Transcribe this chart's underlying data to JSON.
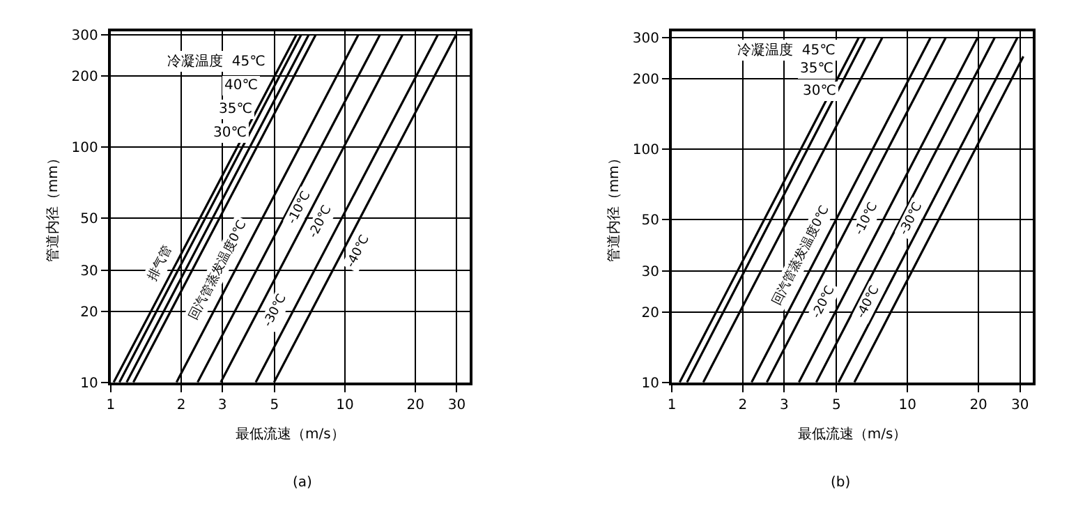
{
  "chart_data": [
    {
      "type": "line",
      "xlabel": "最低流速（m/s）",
      "ylabel": "管道内径（mm）",
      "log": "xy",
      "grid": true,
      "line_style": "solid",
      "xlim": [
        1,
        34
      ],
      "ylim": [
        10,
        310
      ],
      "xticks": [
        1,
        2,
        3,
        5,
        10,
        20,
        30
      ],
      "yticks": [
        10,
        20,
        30,
        50,
        100,
        200,
        300
      ],
      "series": [
        {
          "color": "#000000",
          "x": [
            1.03,
            6.2
          ],
          "values": [
            10,
            300
          ]
        },
        {
          "color": "#000000",
          "x": [
            1.09,
            6.5
          ],
          "values": [
            10,
            300
          ]
        },
        {
          "color": "#000000",
          "x": [
            1.17,
            7.0
          ],
          "values": [
            10,
            300
          ]
        },
        {
          "color": "#000000",
          "x": [
            1.25,
            7.5
          ],
          "values": [
            10,
            300
          ]
        },
        {
          "color": "#000000",
          "x": [
            1.91,
            11.4
          ],
          "values": [
            10,
            300
          ]
        },
        {
          "color": "#000000",
          "x": [
            2.35,
            14.1
          ],
          "values": [
            10,
            300
          ]
        },
        {
          "color": "#000000",
          "x": [
            2.95,
            17.6
          ],
          "values": [
            10,
            300
          ]
        },
        {
          "color": "#000000",
          "x": [
            4.16,
            24.9
          ],
          "values": [
            10,
            300
          ]
        },
        {
          "color": "#000000",
          "x": [
            4.98,
            29.8
          ],
          "values": [
            10,
            300
          ]
        }
      ],
      "annotations": [
        {
          "text": "冷凝温度  45℃",
          "x": 5.38,
          "y": 232
        },
        {
          "text": "40℃",
          "x": 5.0,
          "y": 182
        },
        {
          "text": "35℃",
          "x": 4.77,
          "y": 144
        },
        {
          "text": "30℃",
          "x": 4.5,
          "y": 115
        },
        {
          "text": "排气管",
          "x": 1.9,
          "y": 32
        },
        {
          "text": "回汽管蒸发温度0℃",
          "x": 3.4,
          "y": 30
        },
        {
          "text": "-10℃",
          "x": 5.76,
          "y": 55
        },
        {
          "text": "-20℃",
          "x": 6.73,
          "y": 48
        },
        {
          "text": "-30℃",
          "x": 5.99,
          "y": 20
        },
        {
          "text": "-40℃",
          "x": 9.77,
          "y": 36
        },
        "(a)"
      ]
    },
    {
      "type": "line",
      "xlabel": "最低流速（m/s）",
      "ylabel": "管道内径（mm）",
      "log": "xy",
      "grid": true,
      "line_style": "solid",
      "xlim": [
        1,
        34
      ],
      "ylim": [
        10,
        320
      ],
      "xticks": [
        1,
        2,
        3,
        5,
        10,
        20,
        30
      ],
      "yticks": [
        10,
        20,
        30,
        50,
        100,
        200,
        300
      ],
      "series": [
        {
          "color": "#000000",
          "x": [
            1.08,
            6.2
          ],
          "values": [
            10,
            300
          ]
        },
        {
          "color": "#000000",
          "x": [
            1.16,
            6.6
          ],
          "values": [
            10,
            300
          ]
        },
        {
          "color": "#000000",
          "x": [
            1.36,
            7.8
          ],
          "values": [
            10,
            300
          ]
        },
        {
          "color": "#000000",
          "x": [
            2.18,
            12.5
          ],
          "values": [
            10,
            300
          ]
        },
        {
          "color": "#000000",
          "x": [
            2.53,
            14.5
          ],
          "values": [
            10,
            300
          ]
        },
        {
          "color": "#000000",
          "x": [
            3.46,
            19.8
          ],
          "values": [
            10,
            300
          ]
        },
        {
          "color": "#000000",
          "x": [
            4.1,
            23.4
          ],
          "values": [
            10,
            300
          ]
        },
        {
          "color": "#000000",
          "x": [
            5.1,
            29.2
          ],
          "values": [
            10,
            300
          ]
        },
        {
          "color": "#000000",
          "x": [
            5.95,
            31
          ],
          "values": [
            10,
            250
          ]
        }
      ],
      "annotations": [
        {
          "text": "冷凝温度  45℃",
          "x": 5.8,
          "y": 265
        },
        {
          "text": "35℃",
          "x": 5.68,
          "y": 222
        },
        {
          "text": "30℃",
          "x": 5.9,
          "y": 176
        },
        {
          "text": "回汽管蒸发温度0℃",
          "x": 4.14,
          "y": 35
        },
        {
          "text": "-10℃",
          "x": 5.77,
          "y": 50
        },
        {
          "text": "-20℃",
          "x": 5.18,
          "y": 22
        },
        {
          "text": "-30℃",
          "x": 9.35,
          "y": 50
        },
        {
          "text": "-40℃",
          "x": 7.64,
          "y": 22
        },
        "(b)"
      ]
    }
  ]
}
